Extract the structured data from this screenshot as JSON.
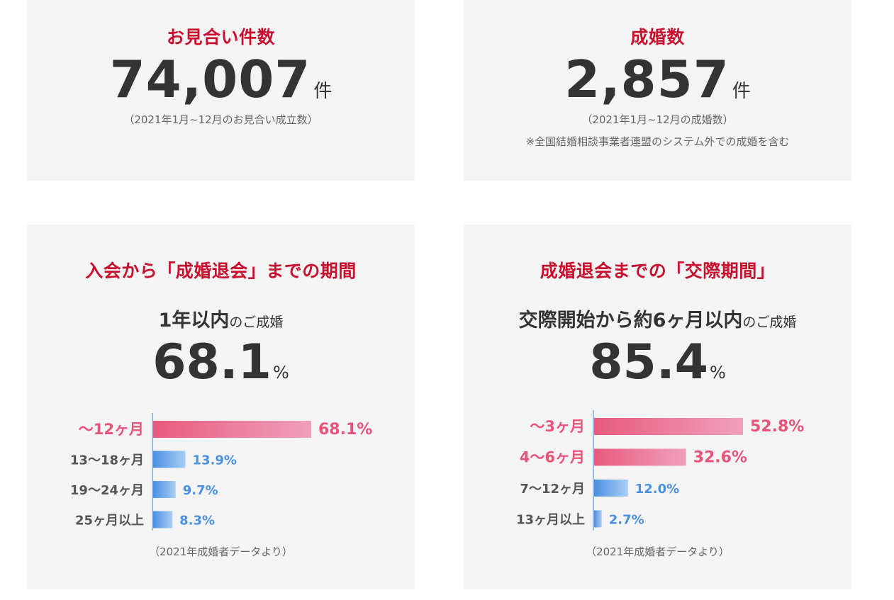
{
  "colors": {
    "title_red": "#c8102e",
    "highlight_pink": "#e8537a",
    "bar_pink_start": "#e85a80",
    "bar_pink_end": "#f0a0bc",
    "bar_blue_start": "#4a90e2",
    "bar_blue_end": "#a9cdf5",
    "text_dark": "#333333",
    "text_gray": "#666666",
    "blue_label": "#4a90e2",
    "card_bg": "#f4f4f4"
  },
  "meetings": {
    "title": "お見合い件数",
    "value": "74,007",
    "unit": "件",
    "note": "（2021年1月~12月のお見合い成立数）"
  },
  "marriages": {
    "title": "成婚数",
    "value": "2,857",
    "unit": "件",
    "note": "（2021年1月~12月の成婚数）",
    "note2": "※全国結婚相談事業者連盟のシステム外での成婚を含む"
  },
  "period": {
    "title": "入会から「成婚退会」までの期間",
    "subtitle_strong": "1年以内",
    "subtitle_weak": "のご成婚",
    "pct": "68.1",
    "pct_unit": "%",
    "source": "（2021年成婚者データより）"
  },
  "dating": {
    "title": "成婚退会までの「交際期間」",
    "subtitle_strong": "交際開始から約6ヶ月以内",
    "subtitle_weak": "のご成婚",
    "pct": "85.4",
    "pct_unit": "%",
    "source": "（2021年成婚者データより）"
  },
  "chart_data": [
    {
      "type": "bar",
      "orientation": "horizontal",
      "categories": [
        "～12ヶ月",
        "13～18ヶ月",
        "19～24ヶ月",
        "25ヶ月以上"
      ],
      "values": [
        68.1,
        13.9,
        9.7,
        8.3
      ],
      "value_labels": [
        "68.1%",
        "13.9%",
        "9.7%",
        "8.3%"
      ],
      "highlight": [
        true,
        false,
        false,
        false
      ],
      "xlim": [
        0,
        68.1
      ],
      "grid": false,
      "legend": "none"
    },
    {
      "type": "bar",
      "orientation": "horizontal",
      "categories": [
        "～3ヶ月",
        "4～6ヶ月",
        "7～12ヶ月",
        "13ヶ月以上"
      ],
      "values": [
        52.8,
        32.6,
        12.0,
        2.7
      ],
      "value_labels": [
        "52.8%",
        "32.6%",
        "12.0%",
        "2.7%"
      ],
      "highlight": [
        true,
        true,
        false,
        false
      ],
      "xlim": [
        0,
        52.8
      ],
      "grid": false,
      "legend": "none"
    }
  ]
}
